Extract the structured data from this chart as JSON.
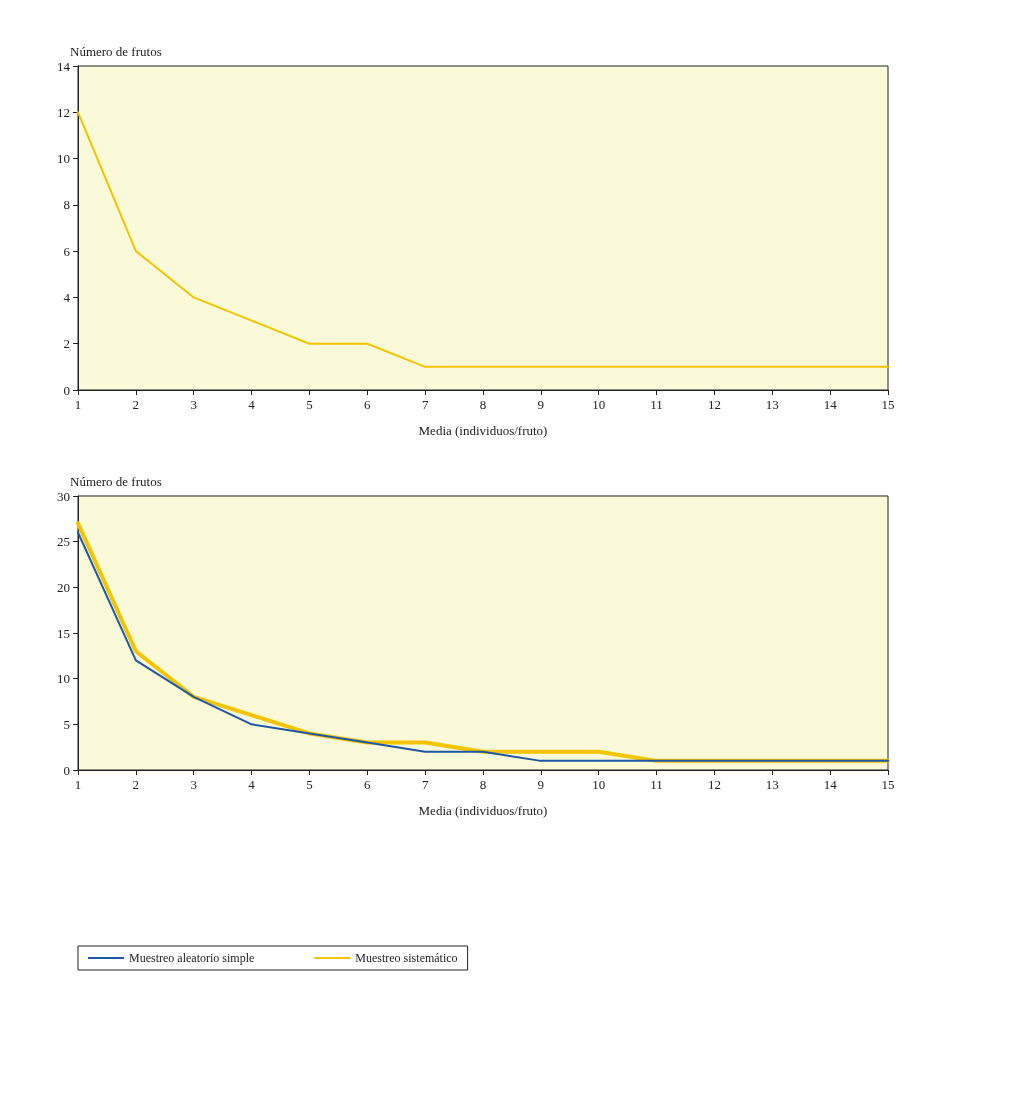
{
  "chart_data": [
    {
      "type": "line",
      "xlabel": "Media (individuos/fruto)",
      "ylabel": "Número de frutos",
      "x": [
        1,
        2,
        3,
        4,
        5,
        6,
        7,
        8,
        9,
        10,
        11,
        12,
        13,
        14,
        15
      ],
      "series": [
        {
          "color": "#f5c400",
          "values": [
            12,
            6,
            4,
            3,
            2,
            2,
            1,
            1,
            1,
            1,
            1,
            1,
            1,
            1,
            1
          ]
        }
      ],
      "xlim": [
        1,
        15
      ],
      "xticks": [
        1,
        2,
        3,
        4,
        5,
        6,
        7,
        8,
        9,
        10,
        11,
        12,
        13,
        14,
        15
      ],
      "ylim": [
        0,
        14
      ],
      "yticks": [
        0,
        2,
        4,
        6,
        8,
        10,
        12,
        14
      ],
      "grid": false,
      "legend": false,
      "marker": "none",
      "line_style": "solid"
    },
    {
      "type": "line",
      "xlabel": "Media (individuos/fruto)",
      "ylabel": "Número de frutos",
      "x": [
        1,
        2,
        3,
        4,
        5,
        6,
        7,
        8,
        9,
        10,
        11,
        12,
        13,
        14,
        15
      ],
      "series": [
        {
          "name": "Muestreo aleatorio simple",
          "color": "#1f57a8",
          "values": [
            26,
            12,
            8,
            5,
            4,
            3,
            2,
            2,
            1,
            1,
            1,
            1,
            1,
            1,
            1
          ]
        },
        {
          "name": "Muestreo sistemático",
          "color": "#f5c400",
          "values": [
            27,
            13,
            8,
            6,
            4,
            3,
            3,
            2,
            2,
            2,
            1,
            1,
            1,
            1,
            1
          ]
        }
      ],
      "xlim": [
        1,
        15
      ],
      "xticks": [
        1,
        2,
        3,
        4,
        5,
        6,
        7,
        8,
        9,
        10,
        11,
        12,
        13,
        14,
        15
      ],
      "ylim": [
        0,
        30
      ],
      "yticks": [
        0,
        5,
        10,
        15,
        20,
        25,
        30
      ],
      "grid": false,
      "legend": "bottom",
      "marker": "none",
      "line_style": "solid"
    }
  ]
}
